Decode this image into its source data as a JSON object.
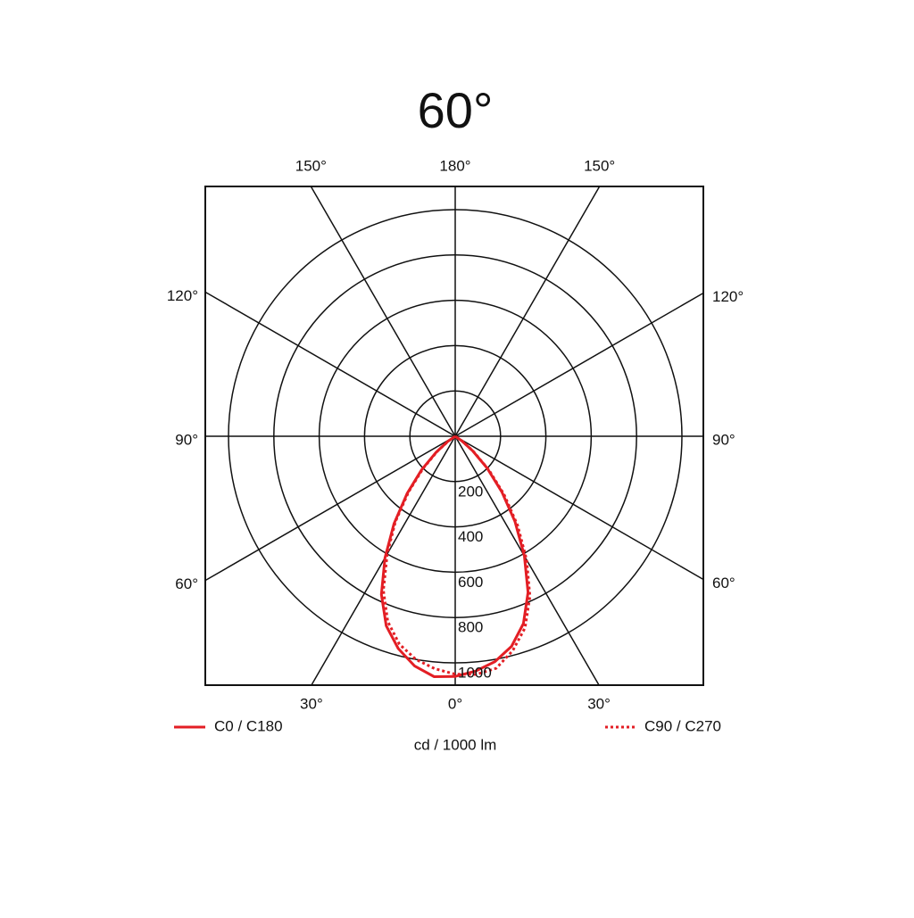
{
  "chart_data": {
    "type": "polar",
    "title": "60°",
    "axis_label": "cd / 1000 lm",
    "rlim": [
      0,
      1000
    ],
    "rticks": [
      200,
      400,
      600,
      800,
      1000
    ],
    "thetaticks": [
      {
        "value": -150,
        "label": "150°"
      },
      {
        "value": -120,
        "label": "120°"
      },
      {
        "value": -90,
        "label": "90°"
      },
      {
        "value": -60,
        "label": "60°"
      },
      {
        "value": -30,
        "label": "30°"
      },
      {
        "value": 0,
        "label": "0°"
      },
      {
        "value": 30,
        "label": "30°"
      },
      {
        "value": 60,
        "label": "60°"
      },
      {
        "value": 90,
        "label": "90°"
      },
      {
        "value": 120,
        "label": "120°"
      },
      {
        "value": 150,
        "label": "150°"
      },
      {
        "value": 180,
        "label": "180°"
      }
    ],
    "theta": [
      -60,
      -55,
      -50,
      -45,
      -40,
      -35,
      -30,
      -25,
      -20,
      -15,
      -10,
      -5,
      0,
      5,
      10,
      15,
      20,
      25,
      30,
      35,
      40,
      45,
      50,
      55,
      60
    ],
    "series": [
      {
        "name": "C0 / C180",
        "color": "#e31e24",
        "style": "solid",
        "values": [
          0,
          40,
          110,
          210,
          330,
          470,
          620,
          770,
          890,
          970,
          1030,
          1065,
          1060,
          1040,
          1010,
          960,
          880,
          760,
          610,
          460,
          320,
          200,
          100,
          35,
          0
        ]
      },
      {
        "name": "C90 / C270",
        "color": "#e31e24",
        "style": "dotted",
        "values": [
          0,
          35,
          100,
          200,
          320,
          460,
          600,
          750,
          870,
          950,
          1000,
          1030,
          1050,
          1055,
          1040,
          980,
          900,
          780,
          630,
          480,
          335,
          210,
          105,
          40,
          0
        ]
      }
    ]
  }
}
